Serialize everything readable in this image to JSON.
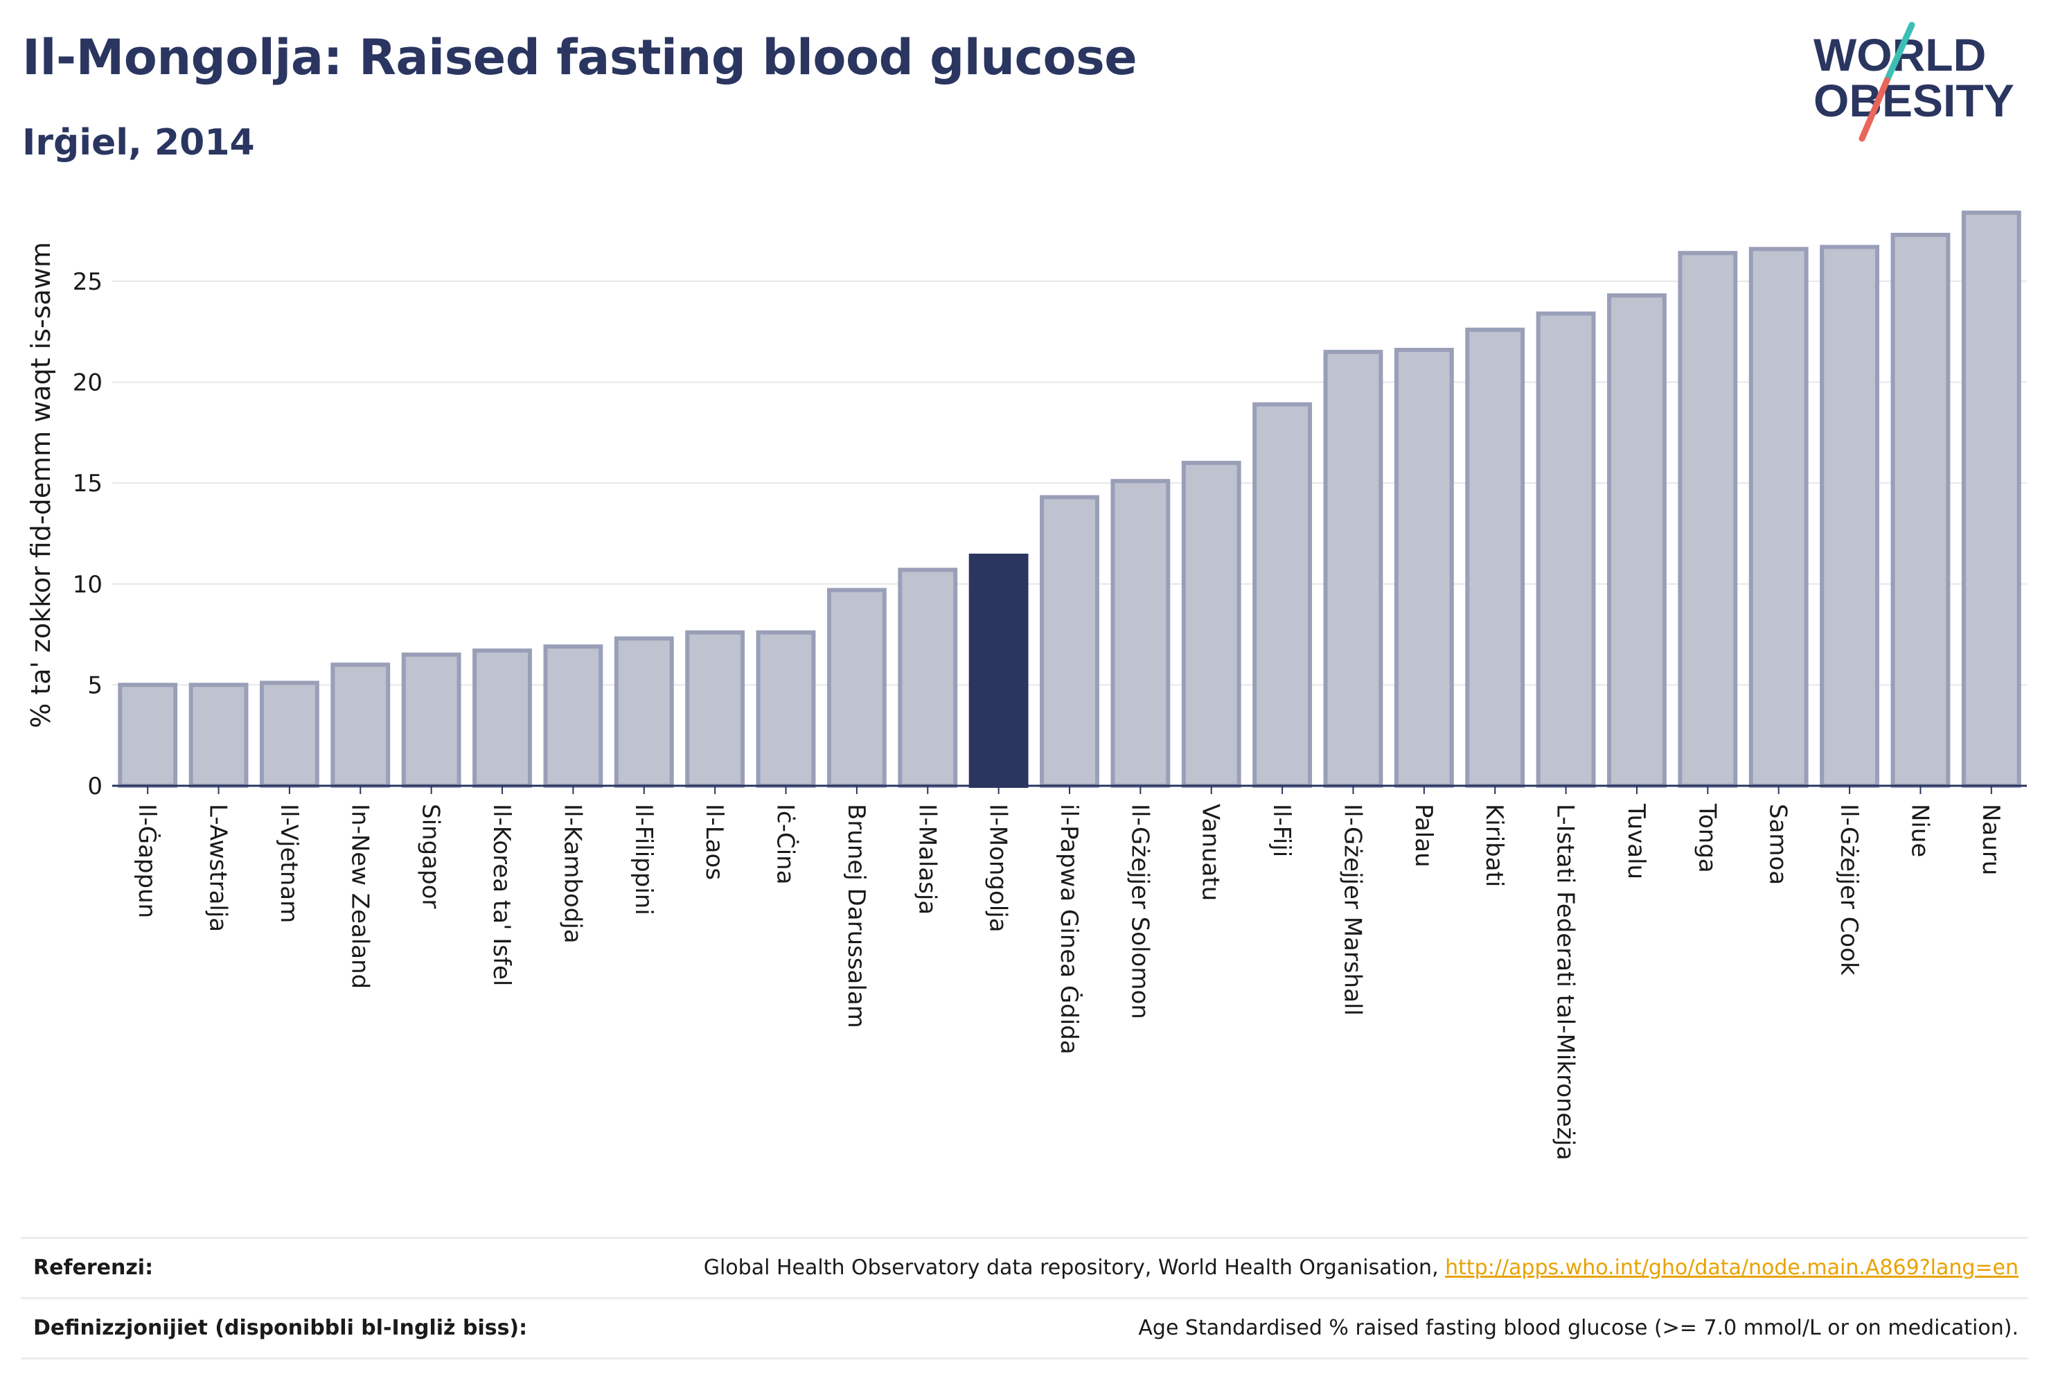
{
  "header": {
    "title": "Il-Mongolja: Raised fasting blood glucose",
    "subtitle": "Irġiel, 2014"
  },
  "logo": {
    "line1": "WORLD",
    "line2": "OBESITY",
    "colors": {
      "text": "#2a3660",
      "slash_teal": "#3cbfb4",
      "slash_red": "#e8665a"
    }
  },
  "chart_data": {
    "type": "bar",
    "title": "Il-Mongolja: Raised fasting blood glucose",
    "subtitle": "Irġiel, 2014",
    "xlabel": "",
    "ylabel": "% ta' zokkor fid-demm waqt is-sawm",
    "ylim": [
      0,
      28.5
    ],
    "yticks": [
      0,
      5,
      10,
      15,
      20,
      25
    ],
    "grid": true,
    "legend": "none",
    "highlight": "Il-Mongolja",
    "colors": {
      "bar": "#bfc2cf",
      "bar_edge": "#9a9fb8",
      "highlight": "#2a3660",
      "grid": "#e6e6ec",
      "axis": "#2a3660"
    },
    "categories": [
      "Il-Ġappun",
      "L-Awstralja",
      "Il-Vjetnam",
      "In-New Zealand",
      "Singapor",
      "Il-Korea ta' Isfel",
      "Il-Kambodja",
      "Il-Filippini",
      "Il-Laos",
      "Iċ-Ċina",
      "Brunej Darussalam",
      "Il-Malasja",
      "Il-Mongolja",
      "il-Papwa Ginea Ġdida",
      "Il-Gżejjer Solomon",
      "Vanuatu",
      "Il-Fiji",
      "Il-Gżejjer Marshall",
      "Palau",
      "Kiribati",
      "L-Istati Federati tal-Mikroneżja",
      "Tuvalu",
      "Tonga",
      "Samoa",
      "Il-Gżejjer Cook",
      "Niue",
      "Nauru"
    ],
    "values": [
      5.0,
      5.0,
      5.1,
      6.0,
      6.5,
      6.7,
      6.9,
      7.3,
      7.6,
      7.6,
      9.7,
      10.7,
      11.4,
      14.3,
      15.1,
      16.0,
      18.9,
      21.5,
      21.6,
      22.6,
      23.4,
      24.3,
      26.4,
      26.6,
      26.7,
      27.3,
      28.4
    ]
  },
  "footer": {
    "references_label": "Referenzi:",
    "references_text": "Global Health Observatory data repository, World Health Organisation, ",
    "references_link": "http://apps.who.int/gho/data/node.main.A869?lang=en",
    "definitions_label": "Definizzjonijiet (disponibbli bl-Ingliż biss):",
    "definitions_text": "Age Standardised % raised fasting blood glucose (>= 7.0 mmol/L or on medication)."
  }
}
